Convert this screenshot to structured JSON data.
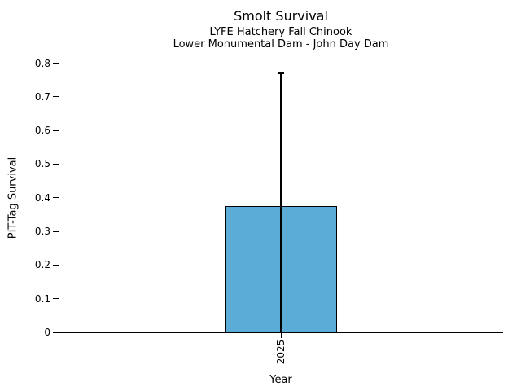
{
  "chart_data": {
    "type": "bar",
    "title": "Smolt Survival",
    "subtitle": [
      "LYFE Hatchery Fall Chinook",
      "Lower Monumental Dam - John Day Dam"
    ],
    "xlabel": "Year",
    "ylabel": "PIT-Tag Survival",
    "categories": [
      "2025"
    ],
    "values": [
      0.375
    ],
    "error_upper_values": [
      0.77
    ],
    "error_lower_values": [
      0
    ],
    "ylim": [
      0,
      0.8
    ],
    "ytick_values": [
      0,
      0.1,
      0.2,
      0.3,
      0.4,
      0.5,
      0.6,
      0.7,
      0.8
    ],
    "ytick_labels": [
      "0",
      "0.1",
      "0.2",
      "0.3",
      "0.4",
      "0.5",
      "0.6",
      "0.7",
      "0.8"
    ],
    "bar_color": "#5BACD6",
    "edge_color": "#000000",
    "text_color": "#000000",
    "background_color": "#FFFFFF",
    "grid": false,
    "legend": "none"
  }
}
